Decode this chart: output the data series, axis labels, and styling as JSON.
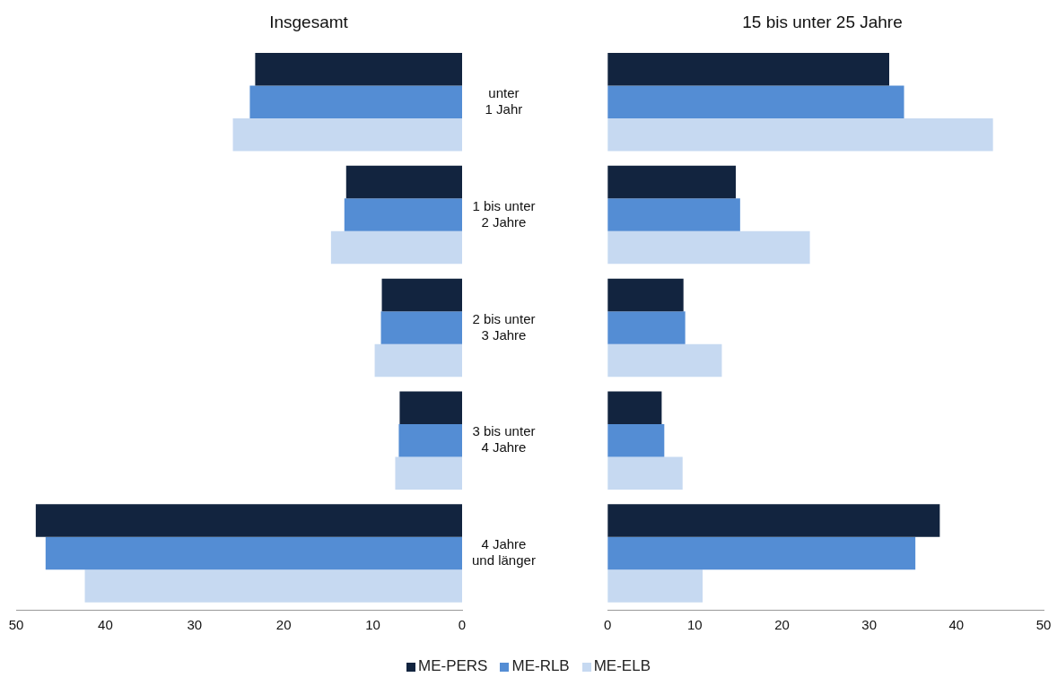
{
  "chart_data": [
    {
      "type": "bar",
      "orientation": "horizontal",
      "title": "Insgesamt",
      "categories": [
        "unter\n1 Jahr",
        "1 bis unter\n2 Jahre",
        "2 bis unter\n3 Jahre",
        "3 bis unter\n4 Jahre",
        "4 Jahre\nund länger"
      ],
      "xlim": [
        50,
        0
      ],
      "xticks": [
        50,
        40,
        30,
        20,
        10,
        0
      ],
      "grid": false,
      "legend": "bottom",
      "series": [
        {
          "name": "ME-PERS",
          "color": "#12243f",
          "values": [
            23.2,
            13.0,
            9.0,
            7.0,
            47.8
          ]
        },
        {
          "name": "ME-RLB",
          "color": "#548dd4",
          "values": [
            23.8,
            13.2,
            9.1,
            7.1,
            46.7
          ]
        },
        {
          "name": "ME-ELB",
          "color": "#c6d9f1",
          "values": [
            25.7,
            14.7,
            9.8,
            7.5,
            42.3
          ]
        }
      ]
    },
    {
      "type": "bar",
      "orientation": "horizontal",
      "title": "15 bis unter 25 Jahre",
      "categories": [
        null,
        null,
        null,
        null,
        null
      ],
      "tick_labels": "x",
      "xlim": [
        0,
        50
      ],
      "xticks": [
        0,
        10,
        20,
        30,
        40,
        50
      ],
      "grid": false,
      "series": [
        {
          "color": "#12243f",
          "values": [
            32.3,
            14.7,
            8.7,
            6.2,
            38.1
          ]
        },
        {
          "color": "#548dd4",
          "values": [
            34.0,
            15.2,
            8.9,
            6.5,
            35.3
          ]
        },
        {
          "color": "#c6d9f1",
          "values": [
            44.2,
            23.2,
            13.1,
            8.6,
            10.9
          ]
        }
      ]
    }
  ]
}
